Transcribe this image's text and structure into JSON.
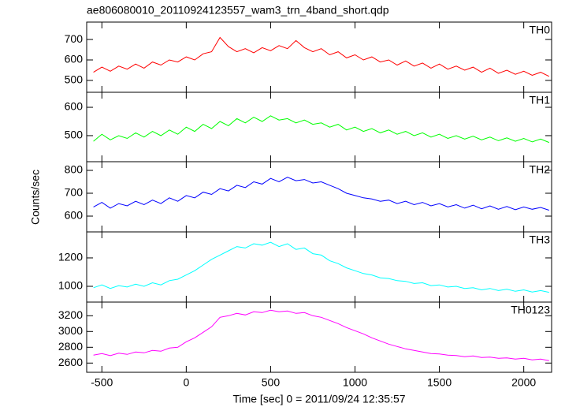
{
  "chart_data": [
    {
      "type": "line",
      "title": "ae806080010_20110924123557_wam3_trn_4band_short.qdp",
      "label": "TH0",
      "color": "#ff0000",
      "ylim": [
        442,
        785
      ],
      "yticks": [
        500,
        600,
        700
      ],
      "values": [
        540,
        565,
        545,
        570,
        555,
        580,
        560,
        590,
        575,
        600,
        590,
        615,
        600,
        630,
        640,
        710,
        665,
        640,
        655,
        635,
        660,
        645,
        670,
        655,
        695,
        660,
        640,
        655,
        625,
        640,
        610,
        625,
        600,
        615,
        590,
        600,
        575,
        595,
        570,
        585,
        560,
        580,
        555,
        570,
        550,
        565,
        540,
        560,
        535,
        550,
        530,
        545,
        525,
        540,
        520
      ]
    },
    {
      "type": "line",
      "label": "TH1",
      "color": "#00ff00",
      "ylim": [
        408,
        653
      ],
      "yticks": [
        500,
        600
      ],
      "values": [
        480,
        505,
        485,
        500,
        490,
        510,
        495,
        515,
        500,
        520,
        505,
        530,
        515,
        540,
        525,
        550,
        535,
        560,
        545,
        565,
        550,
        570,
        555,
        560,
        545,
        555,
        540,
        545,
        530,
        540,
        520,
        530,
        515,
        525,
        510,
        520,
        505,
        515,
        500,
        510,
        495,
        505,
        490,
        500,
        488,
        498,
        485,
        495,
        482,
        492,
        480,
        490,
        478,
        488,
        476
      ]
    },
    {
      "type": "line",
      "label": "TH2",
      "ylabel": "Counts/sec",
      "color": "#0000ff",
      "ylim": [
        531,
        838
      ],
      "yticks": [
        600,
        700,
        800
      ],
      "values": [
        640,
        660,
        635,
        655,
        645,
        665,
        650,
        670,
        655,
        680,
        665,
        690,
        680,
        705,
        695,
        720,
        710,
        735,
        725,
        750,
        740,
        765,
        750,
        770,
        755,
        760,
        745,
        750,
        735,
        720,
        700,
        690,
        680,
        675,
        665,
        670,
        655,
        665,
        650,
        660,
        645,
        655,
        640,
        650,
        635,
        648,
        632,
        645,
        630,
        642,
        628,
        640,
        630,
        638,
        626
      ]
    },
    {
      "type": "line",
      "label": "TH3",
      "color": "#00ffff",
      "ylim": [
        889,
        1383
      ],
      "yticks": [
        1000,
        1200
      ],
      "values": [
        990,
        1010,
        985,
        1005,
        995,
        1015,
        1000,
        1025,
        1010,
        1040,
        1050,
        1080,
        1110,
        1150,
        1190,
        1220,
        1250,
        1280,
        1270,
        1300,
        1290,
        1310,
        1280,
        1300,
        1260,
        1270,
        1230,
        1220,
        1180,
        1160,
        1130,
        1110,
        1090,
        1080,
        1060,
        1055,
        1040,
        1035,
        1020,
        1025,
        1005,
        1010,
        995,
        1000,
        985,
        990,
        975,
        985,
        970,
        980,
        965,
        975,
        960,
        970,
        958
      ]
    },
    {
      "type": "line",
      "label": "TH0123",
      "xlabel": "Time [sec] 0 = 2011/09/24 12:35:57",
      "color": "#ff00ff",
      "ylim": [
        2483,
        3373
      ],
      "yticks": [
        2600,
        2800,
        3000,
        3200
      ],
      "xlim": [
        -590,
        2165
      ],
      "xticks": [
        -500,
        0,
        500,
        1000,
        1500,
        2000
      ],
      "x": [
        -550,
        -500,
        -450,
        -400,
        -350,
        -300,
        -250,
        -200,
        -150,
        -100,
        -50,
        0,
        50,
        100,
        150,
        200,
        250,
        300,
        350,
        400,
        450,
        500,
        550,
        600,
        650,
        700,
        750,
        800,
        850,
        900,
        950,
        1000,
        1050,
        1100,
        1150,
        1200,
        1250,
        1300,
        1350,
        1400,
        1450,
        1500,
        1550,
        1600,
        1650,
        1700,
        1750,
        1800,
        1850,
        1900,
        1950,
        2000,
        2050,
        2100,
        2150
      ],
      "values": [
        2700,
        2720,
        2695,
        2725,
        2710,
        2740,
        2730,
        2760,
        2750,
        2790,
        2800,
        2870,
        2920,
        2990,
        3060,
        3180,
        3200,
        3230,
        3210,
        3250,
        3240,
        3270,
        3250,
        3260,
        3230,
        3240,
        3200,
        3180,
        3140,
        3100,
        3050,
        3010,
        2970,
        2920,
        2880,
        2840,
        2810,
        2780,
        2760,
        2740,
        2720,
        2715,
        2700,
        2695,
        2680,
        2690,
        2670,
        2675,
        2660,
        2665,
        2650,
        2660,
        2640,
        2650,
        2630
      ]
    }
  ]
}
